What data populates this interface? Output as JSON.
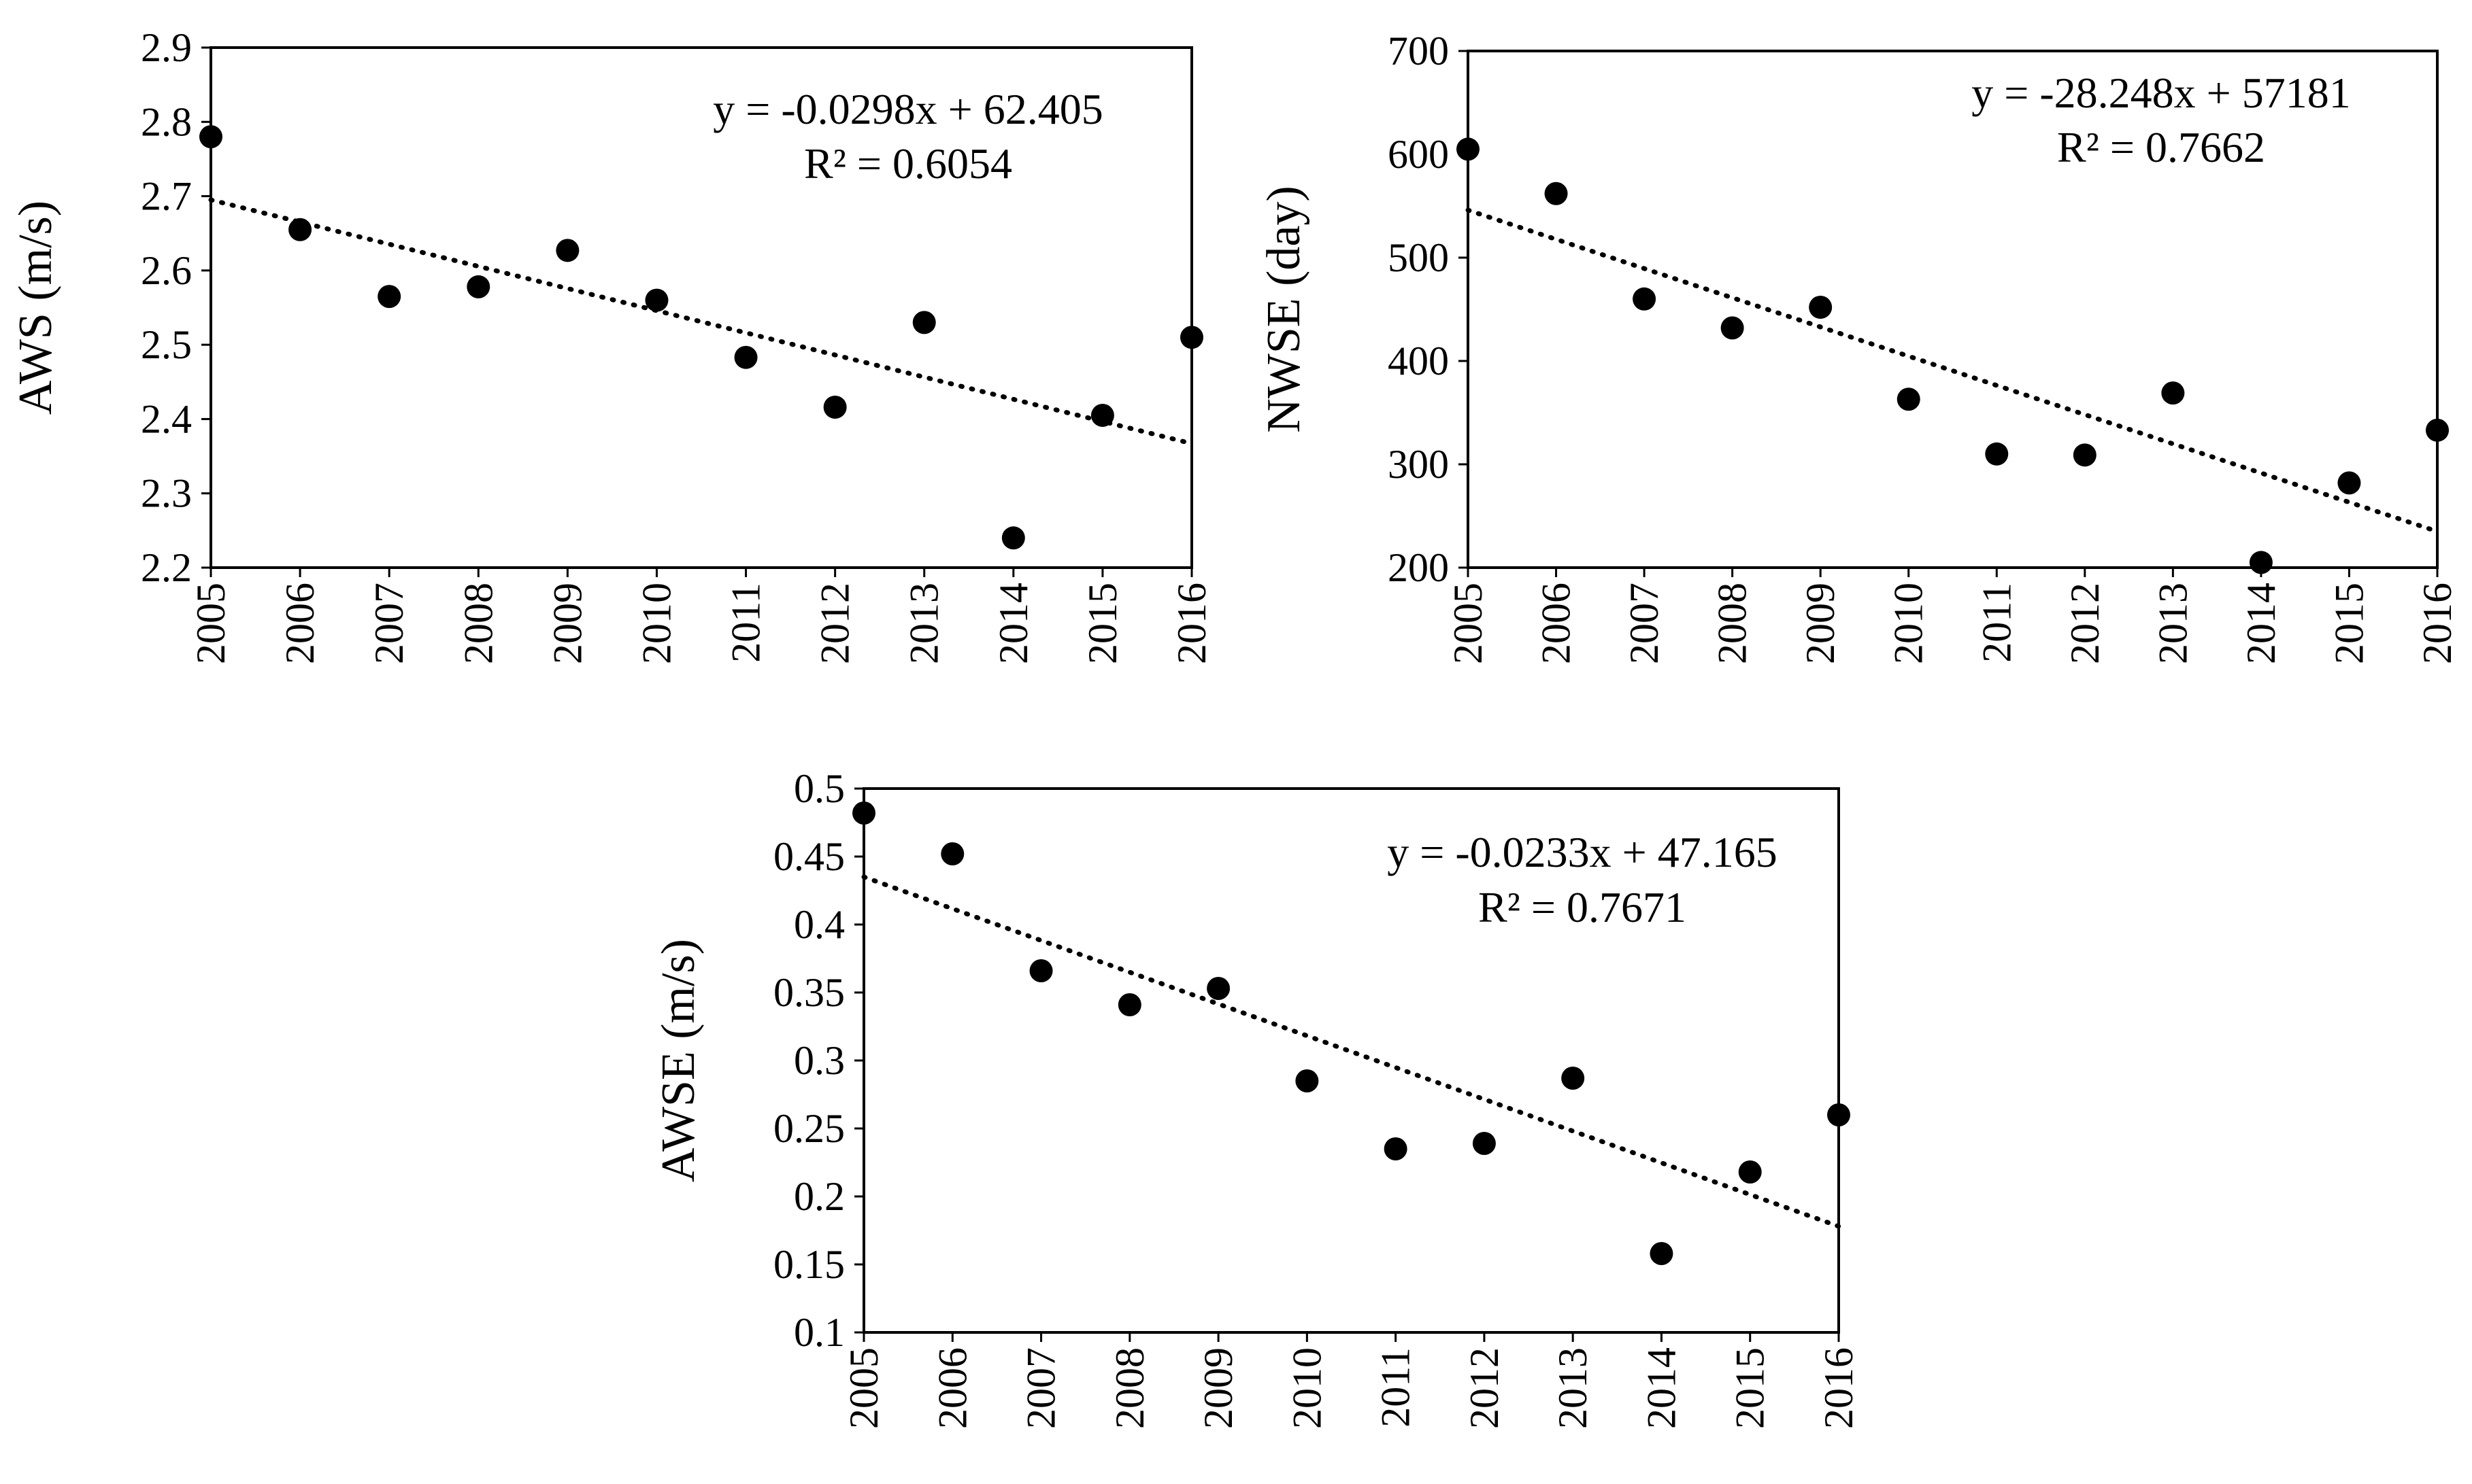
{
  "colors": {
    "marker": "#000000",
    "axis": "#000000",
    "trendline": "#000000",
    "background": "#ffffff"
  },
  "chart_data": [
    {
      "type": "scatter",
      "xlabel": "",
      "ylabel": "AWS (m/s)",
      "x": [
        "2005",
        "2006",
        "2007",
        "2008",
        "2009",
        "2010",
        "2011",
        "2012",
        "2013",
        "2014",
        "2015",
        "2016"
      ],
      "values": [
        2.78,
        2.655,
        2.565,
        2.578,
        2.627,
        2.56,
        2.483,
        2.416,
        2.53,
        2.24,
        2.405,
        2.51
      ],
      "ylim": [
        2.2,
        2.9
      ],
      "yticks": [
        "2.2",
        "2.3",
        "2.4",
        "2.5",
        "2.6",
        "2.7",
        "2.8",
        "2.9"
      ],
      "trendline": {
        "style": "dotted",
        "start": 2.695,
        "end": 2.367
      },
      "equation": "y = -0.0298x + 62.405",
      "r2": "R² = 0.6054",
      "grid": false
    },
    {
      "type": "scatter",
      "xlabel": "",
      "ylabel": "NWSE (day)",
      "x": [
        "2005",
        "2006",
        "2007",
        "2008",
        "2009",
        "2010",
        "2011",
        "2012",
        "2013",
        "2014",
        "2015",
        "2016"
      ],
      "values": [
        605,
        562,
        460,
        432,
        452,
        363,
        310,
        309,
        369,
        205,
        282,
        333
      ],
      "ylim": [
        200,
        700
      ],
      "yticks": [
        "200",
        "300",
        "400",
        "500",
        "600",
        "700"
      ],
      "trendline": {
        "style": "dotted",
        "start": 546,
        "end": 235
      },
      "equation": "y = -28.248x + 57181",
      "r2": "R² = 0.7662",
      "grid": false
    },
    {
      "type": "scatter",
      "xlabel": "",
      "ylabel": "AWSE (m/s)",
      "x": [
        "2005",
        "2006",
        "2007",
        "2008",
        "2009",
        "2010",
        "2011",
        "2012",
        "2013",
        "2014",
        "2015",
        "2016"
      ],
      "values": [
        0.482,
        0.452,
        0.366,
        0.341,
        0.353,
        0.285,
        0.235,
        0.239,
        0.287,
        0.158,
        0.218,
        0.26
      ],
      "ylim": [
        0.1,
        0.5
      ],
      "yticks": [
        "0.1",
        "0.15",
        "0.2",
        "0.25",
        "0.3",
        "0.35",
        "0.4",
        "0.45",
        "0.5"
      ],
      "trendline": {
        "style": "dotted",
        "start": 0.435,
        "end": 0.178
      },
      "equation": "y = -0.0233x + 47.165",
      "r2": "R² = 0.7671",
      "grid": false
    }
  ]
}
